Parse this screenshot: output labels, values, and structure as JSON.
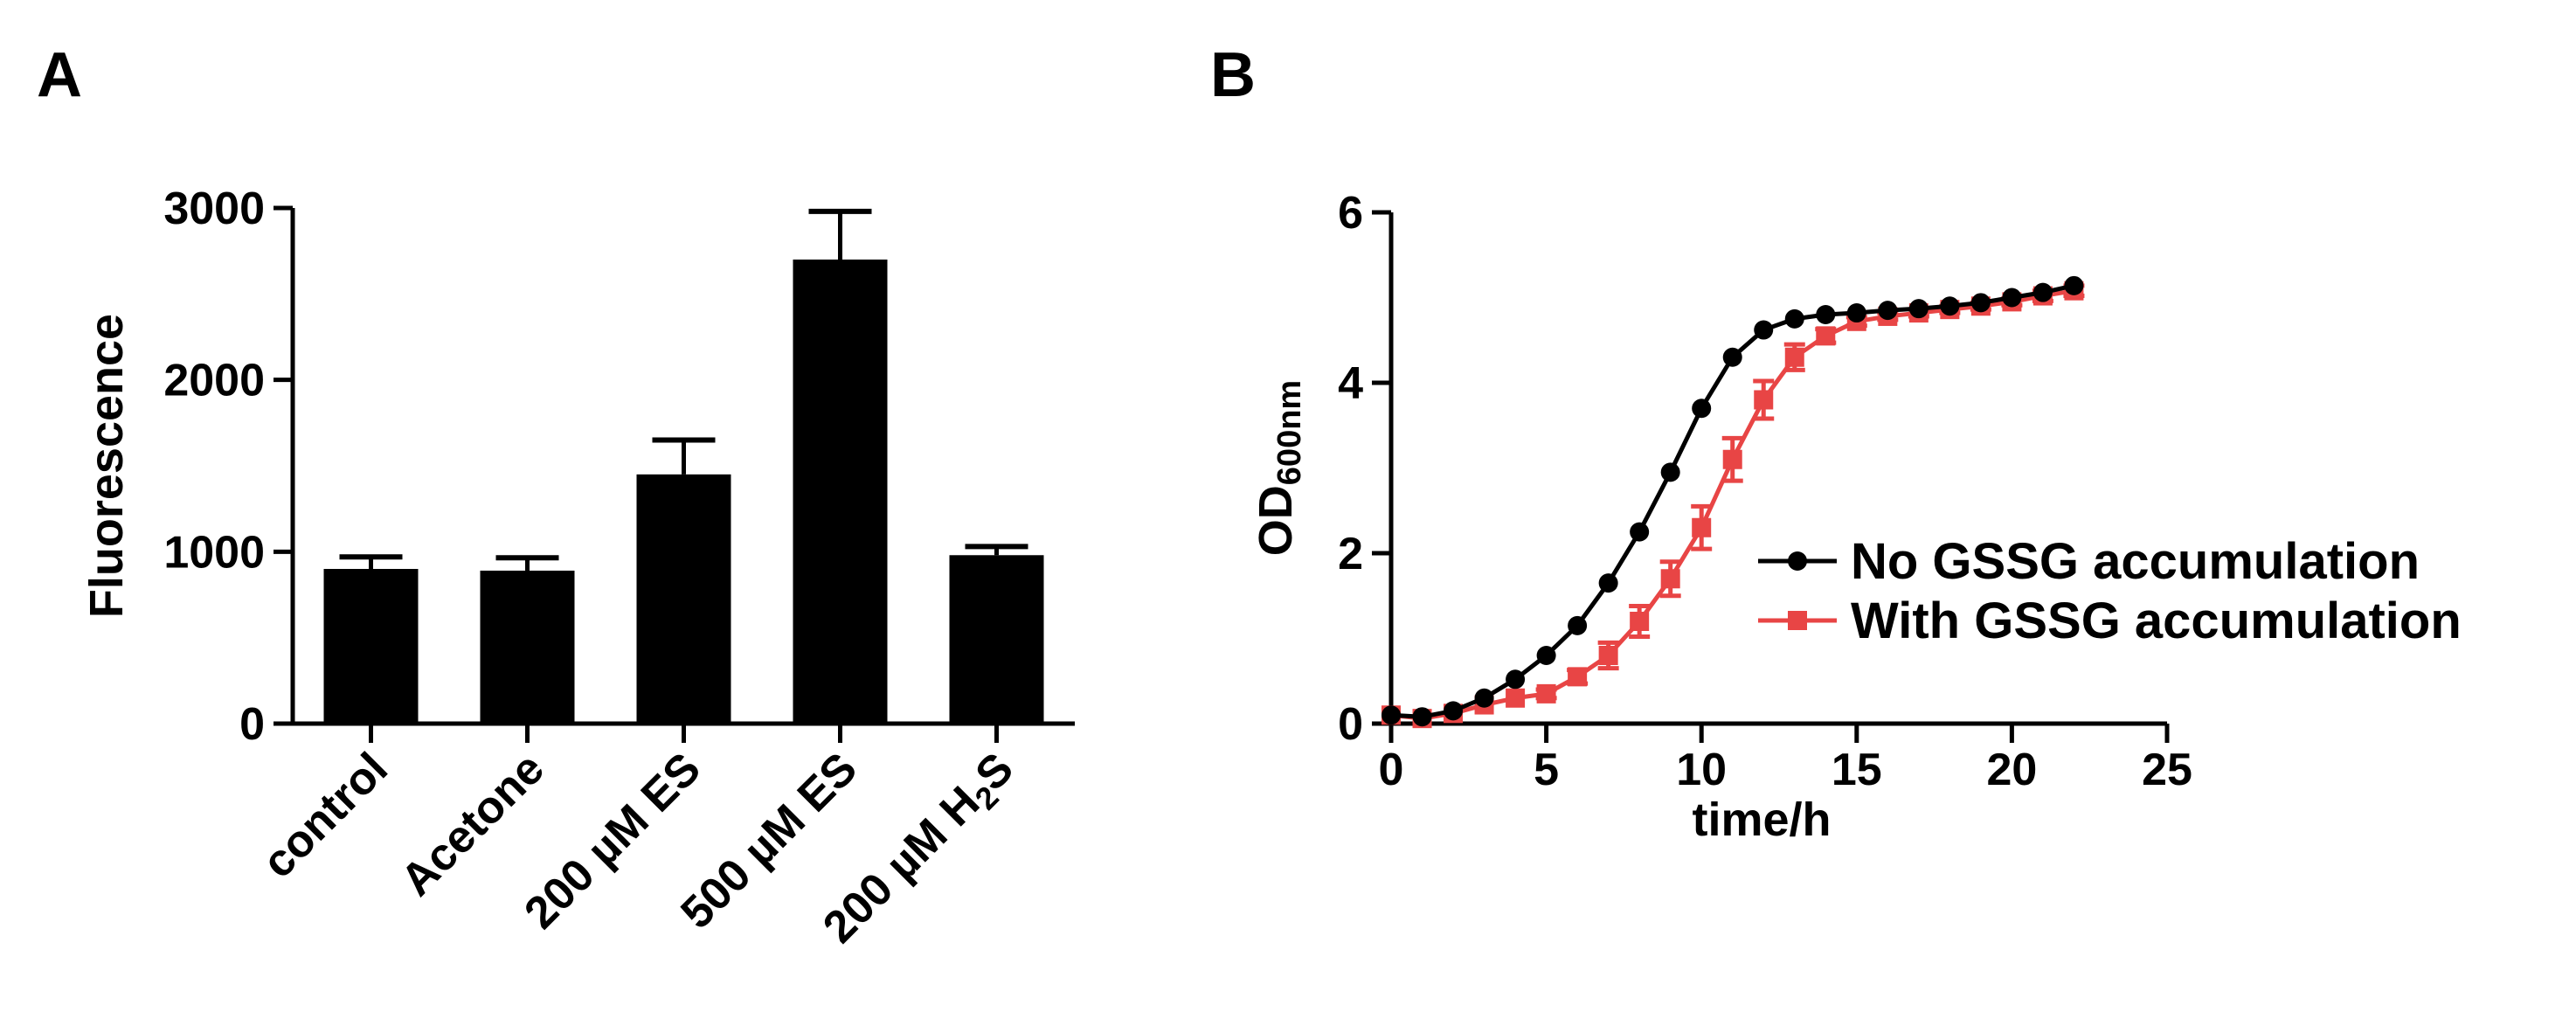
{
  "chart_data": [
    {
      "panel": "A",
      "type": "bar",
      "title": "",
      "ylabel": "Fluorescence",
      "xlabel": "",
      "categories": [
        "control",
        "Acetone",
        "200 µM ES",
        "500 µM ES",
        "200 µM H2S"
      ],
      "category_labels": [
        {
          "text": "control",
          "sub": ""
        },
        {
          "text": "Acetone",
          "sub": ""
        },
        {
          "text": "200 µM ES",
          "sub": ""
        },
        {
          "text": "500 µM ES",
          "sub": ""
        },
        {
          "text": "200 µM H",
          "sub": "2",
          "after": "S"
        }
      ],
      "values": [
        900,
        890,
        1450,
        2700,
        980
      ],
      "errors": [
        70,
        75,
        200,
        280,
        50
      ],
      "ylim": [
        0,
        3000
      ],
      "yticks": [
        0,
        1000,
        2000,
        3000
      ],
      "bar_color": "#000000"
    },
    {
      "panel": "B",
      "type": "line",
      "title": "",
      "xlabel": "time/h",
      "ylabel_main": "OD",
      "ylabel_sub": "600nm",
      "xlim": [
        0,
        25
      ],
      "ylim": [
        0,
        6
      ],
      "xticks": [
        0,
        5,
        10,
        15,
        20,
        25
      ],
      "yticks": [
        0,
        2,
        4,
        6
      ],
      "legend_position": "center-right",
      "series": [
        {
          "name": "No GSSG accumulation",
          "color": "#000000",
          "marker": "circle",
          "x": [
            0,
            1,
            2,
            3,
            4,
            5,
            6,
            7,
            8,
            9,
            10,
            11,
            12,
            13,
            14,
            15,
            16,
            17,
            18,
            19,
            20,
            21,
            22
          ],
          "y": [
            0.1,
            0.08,
            0.15,
            0.3,
            0.52,
            0.8,
            1.15,
            1.65,
            2.25,
            2.95,
            3.7,
            4.3,
            4.62,
            4.75,
            4.8,
            4.82,
            4.85,
            4.87,
            4.9,
            4.94,
            5.0,
            5.06,
            5.14
          ],
          "err": [
            0,
            0,
            0,
            0,
            0,
            0,
            0,
            0,
            0,
            0,
            0,
            0,
            0,
            0,
            0,
            0,
            0,
            0,
            0,
            0,
            0,
            0,
            0
          ]
        },
        {
          "name": "With GSSG accumulation",
          "color": "#e84545",
          "marker": "square",
          "x": [
            0,
            1,
            2,
            3,
            4,
            5,
            6,
            7,
            8,
            9,
            10,
            11,
            12,
            13,
            14,
            15,
            16,
            17,
            18,
            19,
            20,
            21,
            22
          ],
          "y": [
            0.1,
            0.06,
            0.12,
            0.22,
            0.3,
            0.35,
            0.55,
            0.8,
            1.2,
            1.7,
            2.3,
            3.1,
            3.8,
            4.3,
            4.55,
            4.72,
            4.78,
            4.82,
            4.86,
            4.9,
            4.95,
            5.02,
            5.08
          ],
          "err": [
            0,
            0,
            0,
            0,
            0,
            0.05,
            0.08,
            0.15,
            0.18,
            0.2,
            0.25,
            0.25,
            0.22,
            0.15,
            0.08,
            0.05,
            0.04,
            0.04,
            0.04,
            0.04,
            0.04,
            0.06,
            0.06
          ]
        }
      ]
    }
  ]
}
